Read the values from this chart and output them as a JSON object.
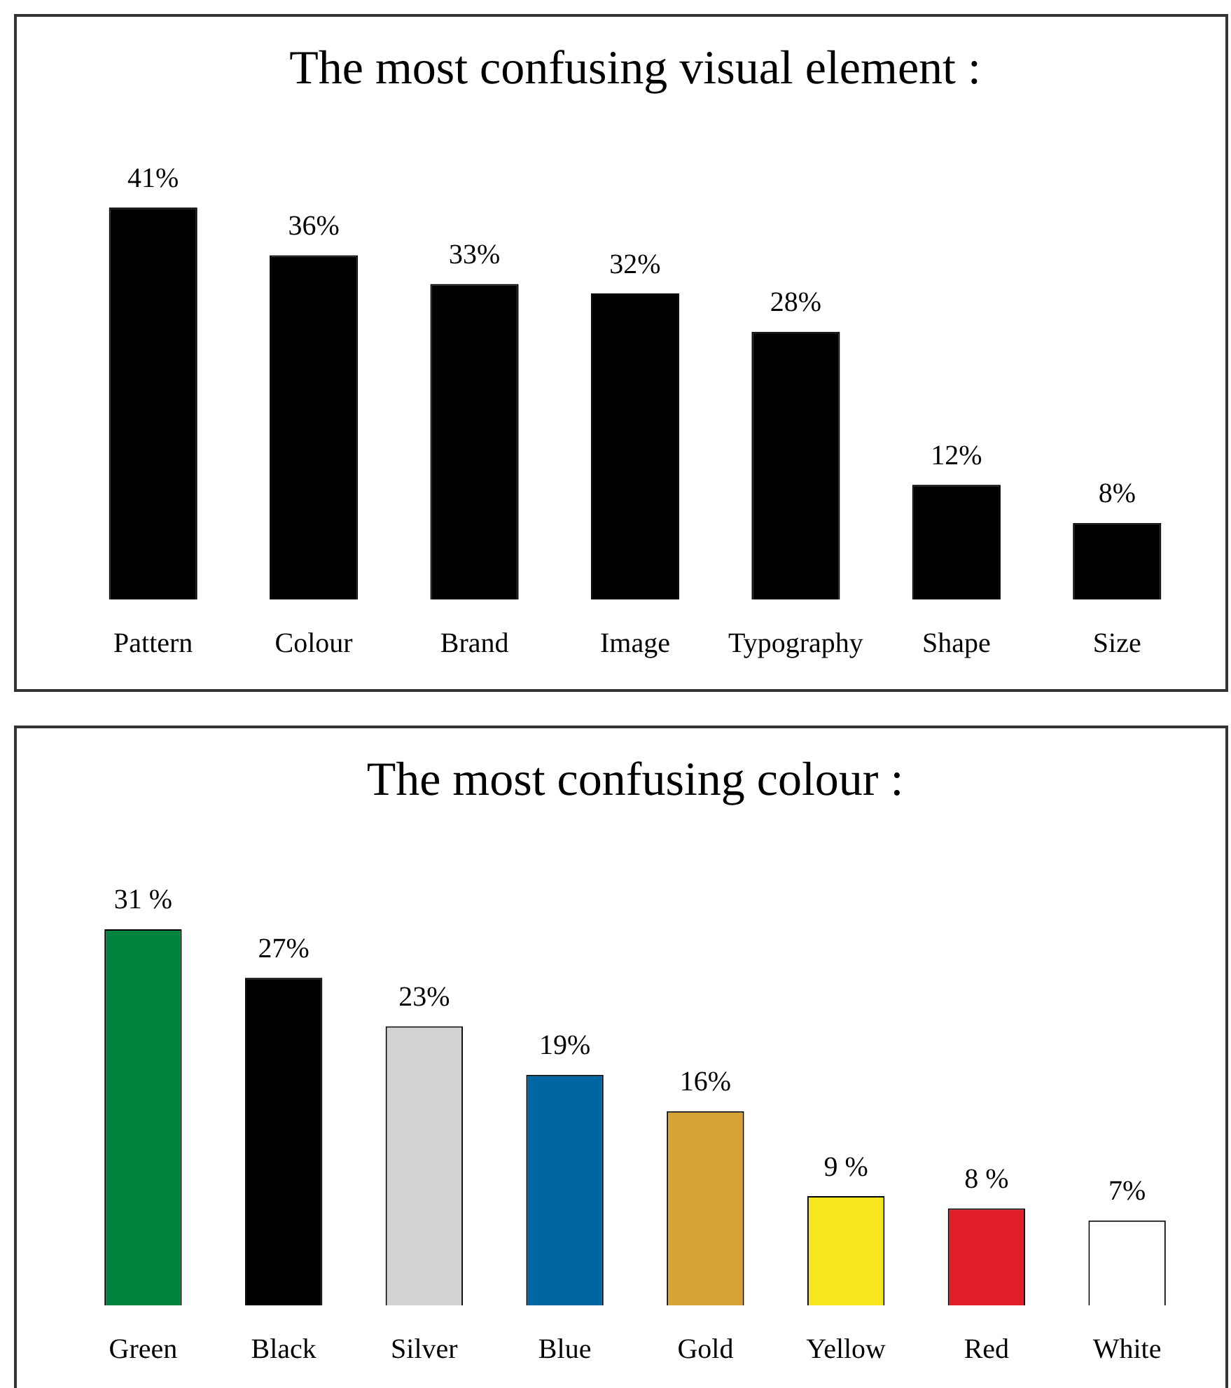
{
  "chart_data": [
    {
      "type": "bar",
      "title": "The most confusing visual element :",
      "categories": [
        "Pattern",
        "Colour",
        "Brand",
        "Image",
        "Typography",
        "Shape",
        "Size"
      ],
      "values": [
        41,
        36,
        33,
        32,
        28,
        12,
        8
      ],
      "color": "#000000",
      "value_labels": [
        "41%",
        "36%",
        "33%",
        "32%",
        "28%",
        "12%",
        "8%"
      ]
    },
    {
      "type": "bar",
      "title": "The most confusing colour :",
      "categories": [
        "Green",
        "Black",
        "Silver",
        "Blue",
        "Gold",
        "Yellow",
        "Red",
        "White"
      ],
      "values": [
        31,
        27,
        23,
        19,
        16,
        9,
        8,
        7
      ],
      "colors": [
        "#00843d",
        "#000000",
        "#d1d2d4",
        "#0066a1",
        "#d6a336",
        "#f5e61e",
        "#e01f2a",
        "#ffffff"
      ],
      "value_labels": [
        "31 %",
        "27%",
        "23%",
        "19%",
        "16%",
        "9 %",
        "8 %",
        "7%"
      ]
    }
  ]
}
